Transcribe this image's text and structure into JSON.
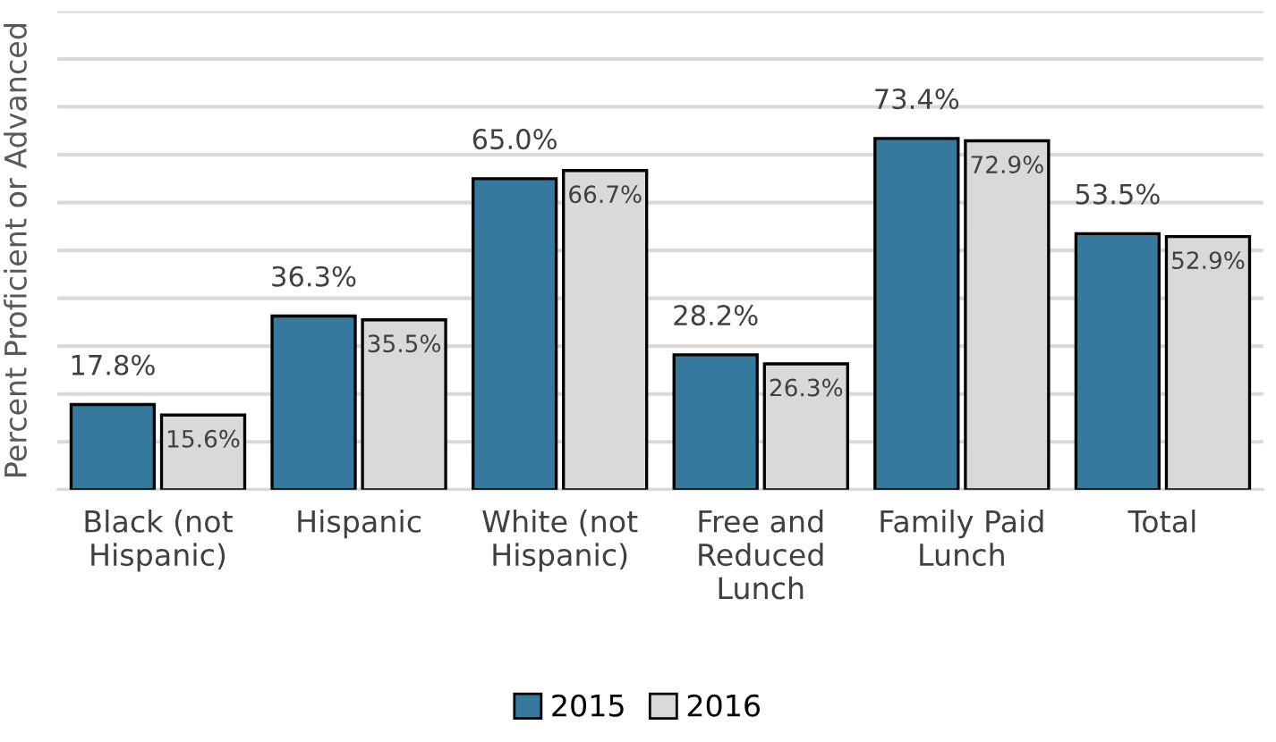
{
  "chart_data": {
    "type": "bar",
    "ylabel": "Percent Proficient or Advanced",
    "categories": [
      "Black (not\nHispanic)",
      "Hispanic",
      "White (not\nHispanic)",
      "Free and\nReduced\nLunch",
      "Family Paid\nLunch",
      "Total"
    ],
    "series": [
      {
        "name": "2015",
        "color": "#35799f",
        "values": [
          17.8,
          36.3,
          65.0,
          28.2,
          73.4,
          53.5
        ],
        "value_labels": [
          "17.8%",
          "36.3%",
          "65.0%",
          "28.2%",
          "73.4%",
          "53.5%"
        ]
      },
      {
        "name": "2016",
        "color": "#d9d9d9",
        "values": [
          15.6,
          35.5,
          66.7,
          26.3,
          72.9,
          52.9
        ],
        "value_labels": [
          "15.6%",
          "35.5%",
          "66.7%",
          "26.3%",
          "72.9%",
          "52.9%"
        ]
      }
    ],
    "ylim": [
      0,
      100
    ],
    "yticks": [
      {
        "value": 0,
        "label": null
      },
      {
        "value": 10,
        "label": null
      },
      {
        "value": 20,
        "label": null
      },
      {
        "value": 30,
        "label": null
      },
      {
        "value": 40,
        "label": null
      },
      {
        "value": 50,
        "label": null
      },
      {
        "value": 60,
        "label": null
      },
      {
        "value": 70,
        "label": null
      },
      {
        "value": 80,
        "label": null
      },
      {
        "value": 90,
        "label": null
      },
      {
        "value": 100,
        "label": null
      }
    ],
    "grid": "y",
    "legend": "bottom",
    "tick_labels": "x"
  }
}
